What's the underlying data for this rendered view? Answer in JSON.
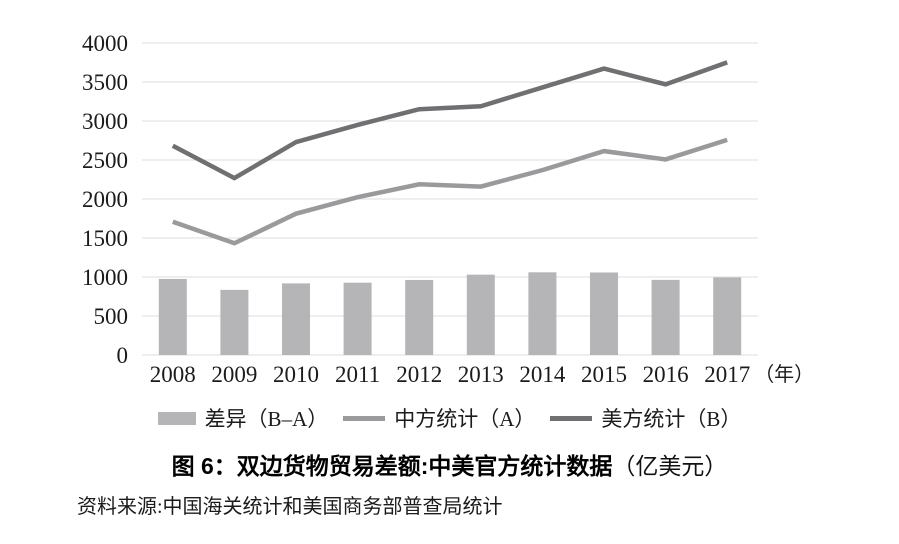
{
  "chart_data": {
    "type": "bar+line combo",
    "title": "图 6：双边货物贸易差额:中美官方统计数据（亿美元）",
    "categories": [
      "2008",
      "2009",
      "2010",
      "2011",
      "2012",
      "2013",
      "2014",
      "2015",
      "2016",
      "2017"
    ],
    "x_axis_suffix": "（年）",
    "yticks": [
      "0",
      "500",
      "1000",
      "1500",
      "2000",
      "2500",
      "3000",
      "3500",
      "4000"
    ],
    "ylim": [
      0,
      4000
    ],
    "grid": "horizontal gridlines only",
    "legend_position": "bottom",
    "series": [
      {
        "name": "差异（B–A）",
        "type": "bar",
        "color": "#b5b5b8",
        "values": [
          975,
          835,
          918,
          927,
          962,
          1030,
          1060,
          1058,
          963,
          994
        ]
      },
      {
        "name": "中方统计（A）",
        "type": "line",
        "color": "#9a9a9c",
        "values": [
          1708,
          1433,
          1812,
          2023,
          2189,
          2159,
          2370,
          2614,
          2507,
          2758
        ]
      },
      {
        "name": "美方统计（B）",
        "type": "line",
        "color": "#707073",
        "values": [
          2683,
          2268,
          2730,
          2950,
          3151,
          3189,
          3430,
          3672,
          3470,
          3752
        ]
      }
    ]
  },
  "caption": {
    "bold": "图 6：双边货物贸易差额:中美官方统计数据",
    "unit": "（亿美元）"
  },
  "source": {
    "text": "资料来源:中国海关统计和美国商务部普查局统计"
  }
}
